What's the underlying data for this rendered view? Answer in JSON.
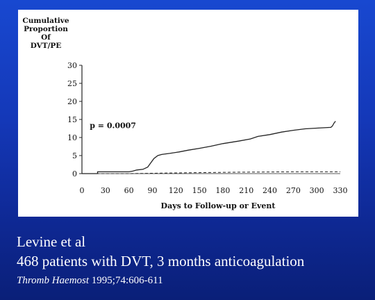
{
  "chart_data": {
    "type": "line",
    "ylabel_lines": [
      "Cumulative",
      "Proportion",
      "Of",
      "DVT/PE"
    ],
    "xlabel": "Days to Follow-up or Event",
    "annotation": "p = 0.0007",
    "xlim": [
      0,
      330
    ],
    "ylim": [
      0,
      30
    ],
    "xticks": [
      0,
      30,
      60,
      90,
      120,
      150,
      180,
      210,
      240,
      270,
      300,
      330
    ],
    "yticks": [
      0,
      5,
      10,
      15,
      20,
      25,
      30
    ],
    "series": [
      {
        "style": "solid",
        "points": [
          [
            0,
            0
          ],
          [
            20,
            0
          ],
          [
            20,
            0.5
          ],
          [
            60,
            0.5
          ],
          [
            65,
            0.7
          ],
          [
            70,
            1.0
          ],
          [
            78,
            1.2
          ],
          [
            84,
            1.8
          ],
          [
            88,
            3.0
          ],
          [
            92,
            4.2
          ],
          [
            97,
            5.0
          ],
          [
            102,
            5.3
          ],
          [
            112,
            5.6
          ],
          [
            124,
            6.0
          ],
          [
            136,
            6.5
          ],
          [
            150,
            7.0
          ],
          [
            165,
            7.6
          ],
          [
            180,
            8.3
          ],
          [
            200,
            9.0
          ],
          [
            215,
            9.6
          ],
          [
            225,
            10.3
          ],
          [
            240,
            10.8
          ],
          [
            255,
            11.5
          ],
          [
            270,
            12.0
          ],
          [
            285,
            12.4
          ],
          [
            300,
            12.6
          ],
          [
            318,
            12.8
          ],
          [
            320,
            13.2
          ],
          [
            322,
            14.0
          ],
          [
            324,
            14.5
          ]
        ]
      },
      {
        "style": "dashed",
        "points": [
          [
            0,
            0
          ],
          [
            60,
            0
          ],
          [
            120,
            0.2
          ],
          [
            200,
            0.4
          ],
          [
            270,
            0.5
          ],
          [
            330,
            0.5
          ]
        ]
      }
    ]
  },
  "caption": {
    "authors": "Levine et al",
    "study": "468 patients with DVT, 3 months anticoagulation",
    "journal": "Thromb Haemost",
    "citation": " 1995;74:606-611"
  }
}
